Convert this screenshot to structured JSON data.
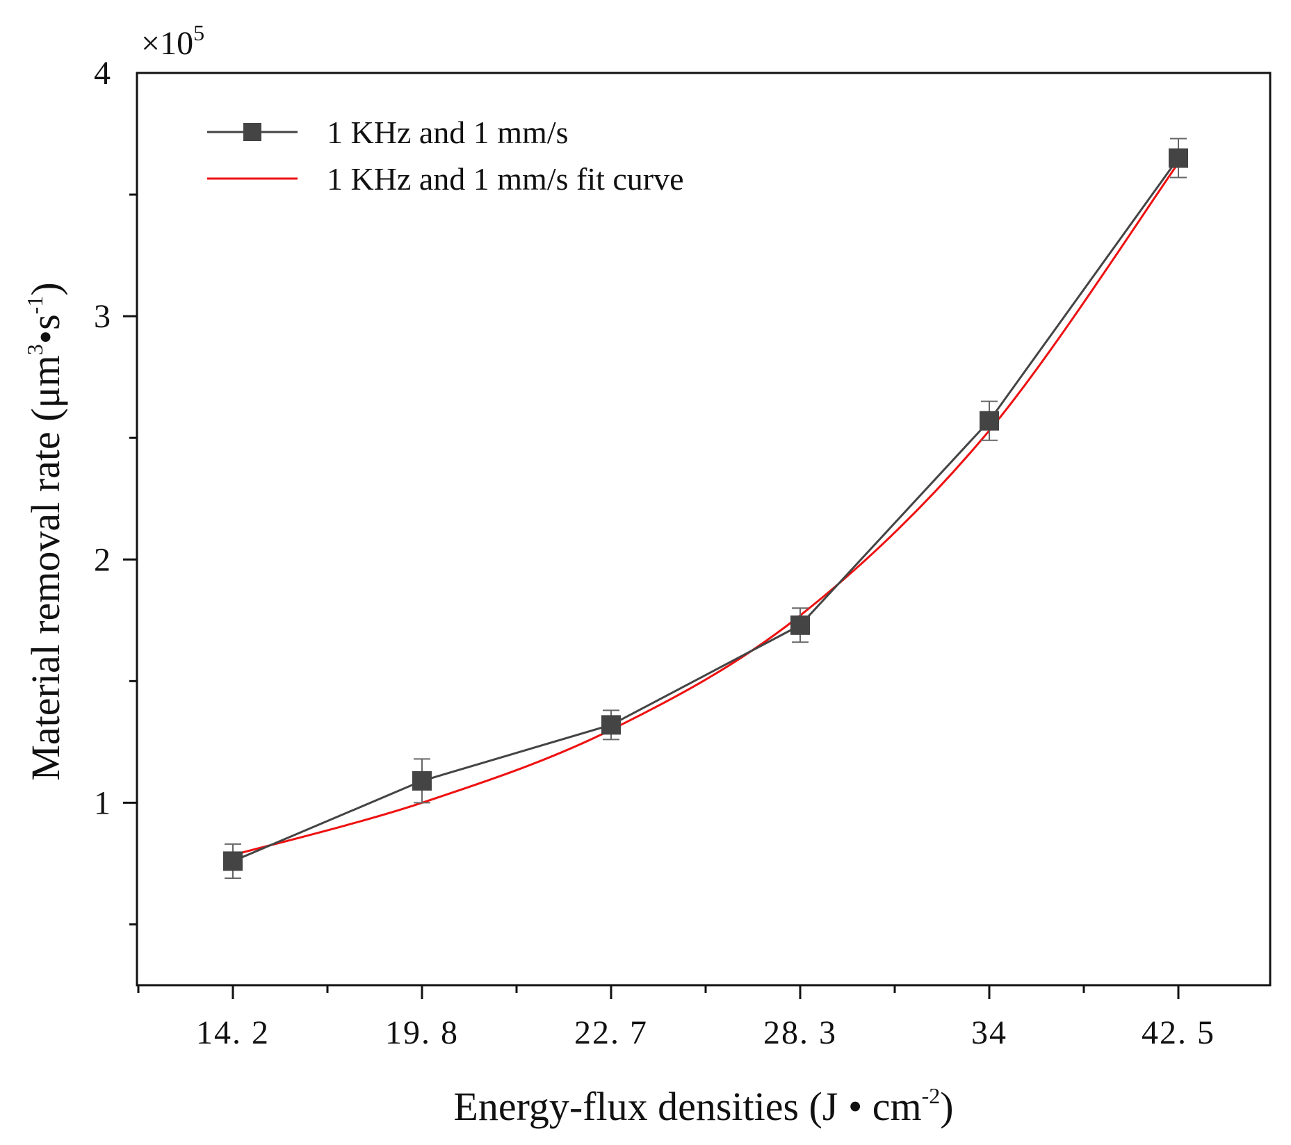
{
  "chart_data": {
    "type": "line",
    "title": "",
    "xlabel": "Energy-flux densities (J • cm",
    "xlabel_sup": "-2",
    "xlabel_tail": ")",
    "ylabel": "Material removal rate (μm",
    "ylabel_sup1": "3",
    "ylabel_mid": "•s",
    "ylabel_sup2": "-1",
    "ylabel_tail": ")",
    "y_multiplier_prefix": "×10",
    "y_multiplier_exp": "5",
    "categories": [
      "14. 2",
      "19. 8",
      "22. 7",
      "28. 3",
      "34",
      "42. 5"
    ],
    "ylim": [
      0.25,
      4.0
    ],
    "y_ticks": [
      1,
      2,
      3,
      4
    ],
    "y_tick_labels": [
      "1",
      "2",
      "3",
      "4"
    ],
    "grid": false,
    "legend_position": "top-left",
    "series": [
      {
        "name": "1 KHz and 1 mm/s",
        "color": "#444444",
        "marker": "square",
        "values": [
          0.76,
          1.09,
          1.32,
          1.73,
          2.57,
          3.65
        ],
        "errors": [
          0.07,
          0.09,
          0.06,
          0.07,
          0.08,
          0.08
        ]
      },
      {
        "name": "1 KHz and 1 mm/s fit curve",
        "color": "#ee1111",
        "marker": "none",
        "fit": "exponential",
        "values": [
          0.785,
          1.0,
          1.3,
          1.77,
          2.53,
          3.63
        ]
      }
    ]
  }
}
